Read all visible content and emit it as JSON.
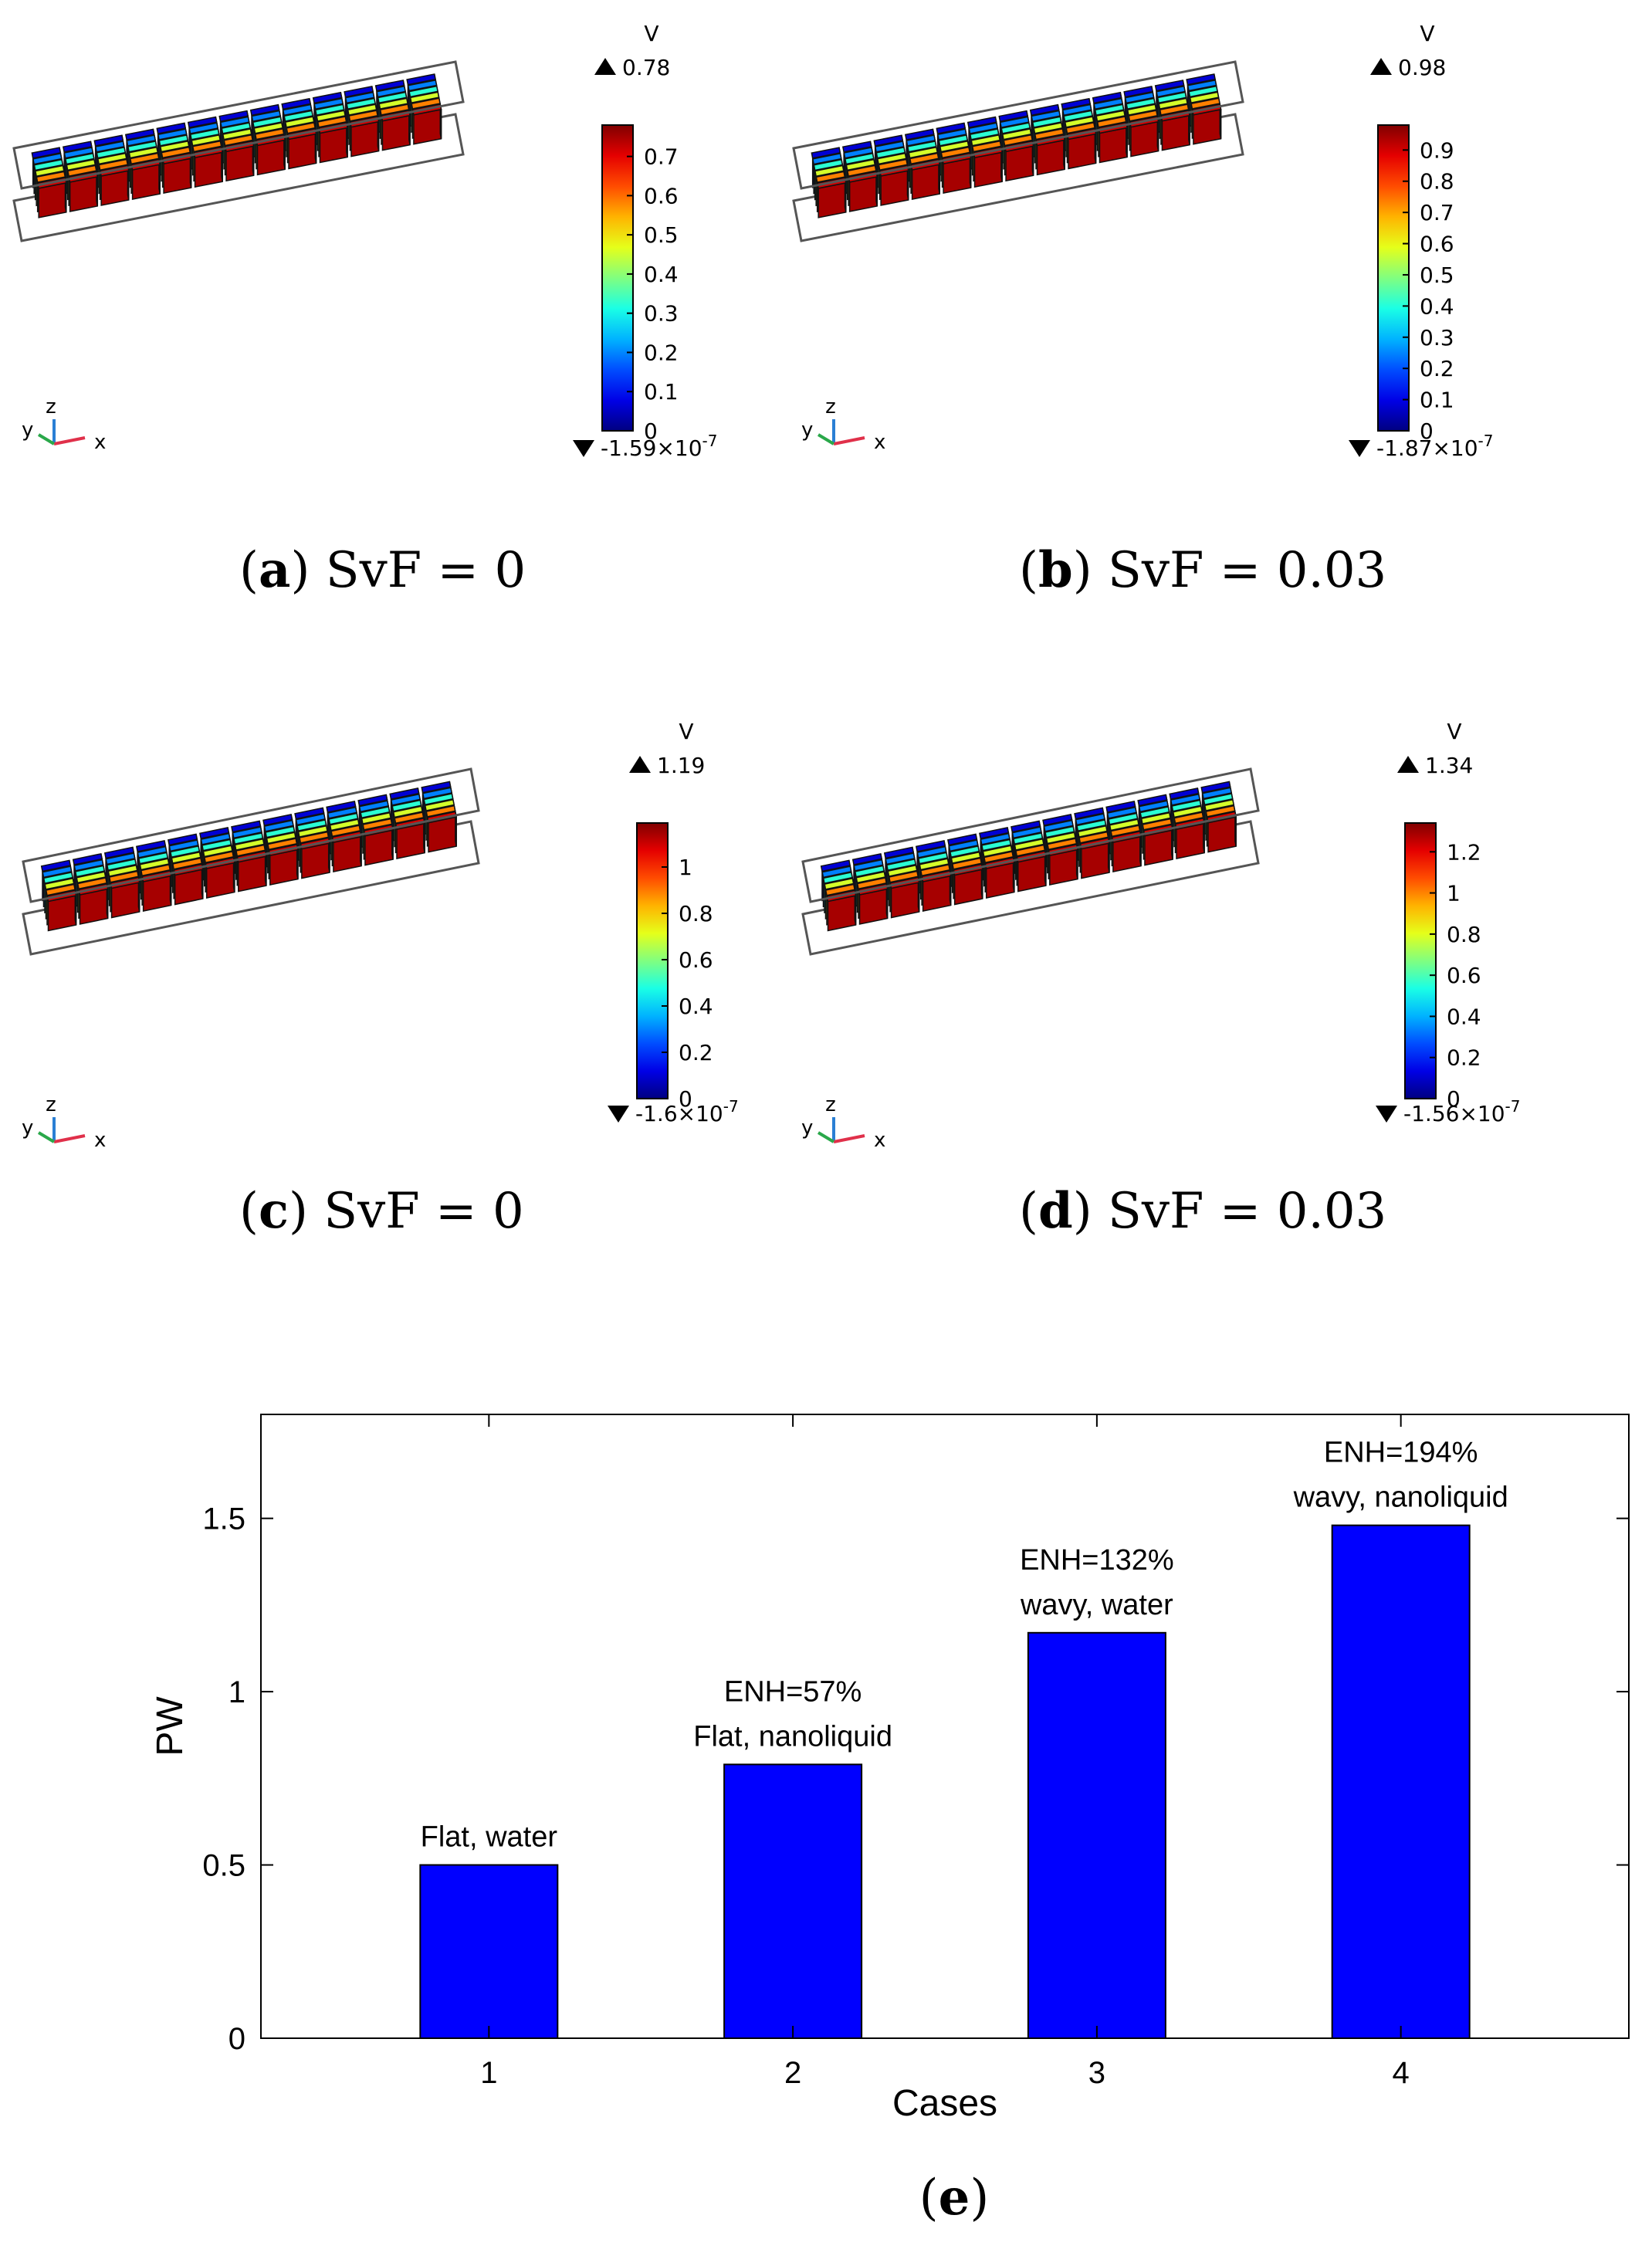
{
  "panels": [
    {
      "id": "a",
      "caption": {
        "letter": "a",
        "text": "SvF = 0"
      },
      "colorbar": {
        "unit": "V",
        "max_label": "0.78",
        "min_label": "-1.59×10",
        "min_exp": "-7",
        "vmax": 0.78,
        "ticks": [
          {
            "value": 0,
            "label": "0"
          },
          {
            "value": 0.1,
            "label": "0.1"
          },
          {
            "value": 0.2,
            "label": "0.2"
          },
          {
            "value": 0.3,
            "label": "0.3"
          },
          {
            "value": 0.4,
            "label": "0.4"
          },
          {
            "value": 0.5,
            "label": "0.5"
          },
          {
            "value": 0.6,
            "label": "0.6"
          },
          {
            "value": 0.7,
            "label": "0.7"
          }
        ]
      },
      "axes": {
        "x": "x",
        "y": "y",
        "z": "z"
      }
    },
    {
      "id": "b",
      "caption": {
        "letter": "b",
        "text": "SvF = 0.03"
      },
      "colorbar": {
        "unit": "V",
        "max_label": "0.98",
        "min_label": "-1.87×10",
        "min_exp": "-7",
        "vmax": 0.98,
        "ticks": [
          {
            "value": 0,
            "label": "0"
          },
          {
            "value": 0.1,
            "label": "0.1"
          },
          {
            "value": 0.2,
            "label": "0.2"
          },
          {
            "value": 0.3,
            "label": "0.3"
          },
          {
            "value": 0.4,
            "label": "0.4"
          },
          {
            "value": 0.5,
            "label": "0.5"
          },
          {
            "value": 0.6,
            "label": "0.6"
          },
          {
            "value": 0.7,
            "label": "0.7"
          },
          {
            "value": 0.8,
            "label": "0.8"
          },
          {
            "value": 0.9,
            "label": "0.9"
          }
        ]
      },
      "axes": {
        "x": "x",
        "y": "y",
        "z": "z"
      }
    },
    {
      "id": "c",
      "caption": {
        "letter": "c",
        "text": "SvF = 0"
      },
      "colorbar": {
        "unit": "V",
        "max_label": "1.19",
        "min_label": "-1.6×10",
        "min_exp": "-7",
        "vmax": 1.19,
        "ticks": [
          {
            "value": 0,
            "label": "0"
          },
          {
            "value": 0.2,
            "label": "0.2"
          },
          {
            "value": 0.4,
            "label": "0.4"
          },
          {
            "value": 0.6,
            "label": "0.6"
          },
          {
            "value": 0.8,
            "label": "0.8"
          },
          {
            "value": 1,
            "label": "1"
          }
        ]
      },
      "axes": {
        "x": "x",
        "y": "y",
        "z": "z"
      }
    },
    {
      "id": "d",
      "caption": {
        "letter": "d",
        "text": "SvF = 0.03"
      },
      "colorbar": {
        "unit": "V",
        "max_label": "1.34",
        "min_label": "-1.56×10",
        "min_exp": "-7",
        "vmax": 1.34,
        "ticks": [
          {
            "value": 0,
            "label": "0"
          },
          {
            "value": 0.2,
            "label": "0.2"
          },
          {
            "value": 0.4,
            "label": "0.4"
          },
          {
            "value": 0.6,
            "label": "0.6"
          },
          {
            "value": 0.8,
            "label": "0.8"
          },
          {
            "value": 1,
            "label": "1"
          },
          {
            "value": 1.2,
            "label": "1.2"
          }
        ]
      },
      "axes": {
        "x": "x",
        "y": "y",
        "z": "z"
      }
    }
  ],
  "chart_data": {
    "type": "bar",
    "title": "",
    "categories": [
      "1",
      "2",
      "3",
      "4"
    ],
    "values": [
      0.5,
      0.79,
      1.17,
      1.48
    ],
    "annotations": [
      [
        "Flat, water"
      ],
      [
        "ENH=57%",
        "Flat, nanoliquid"
      ],
      [
        "ENH=132%",
        "wavy, water"
      ],
      [
        "ENH=194%",
        "wavy, nanoliquid"
      ]
    ],
    "xlabel": "Cases",
    "ylabel": "PW",
    "ylim": [
      0,
      1.8
    ],
    "yticks": [
      0,
      0.5,
      1,
      1.5
    ],
    "ytick_labels": [
      "0",
      "0.5",
      "1",
      "1.5"
    ],
    "bar_color": "#0000ff",
    "caption_letter": "e"
  },
  "colors": {
    "bar": "#0000ff",
    "frame": "#000000",
    "cold": "#00008f",
    "hot": "#800000"
  }
}
